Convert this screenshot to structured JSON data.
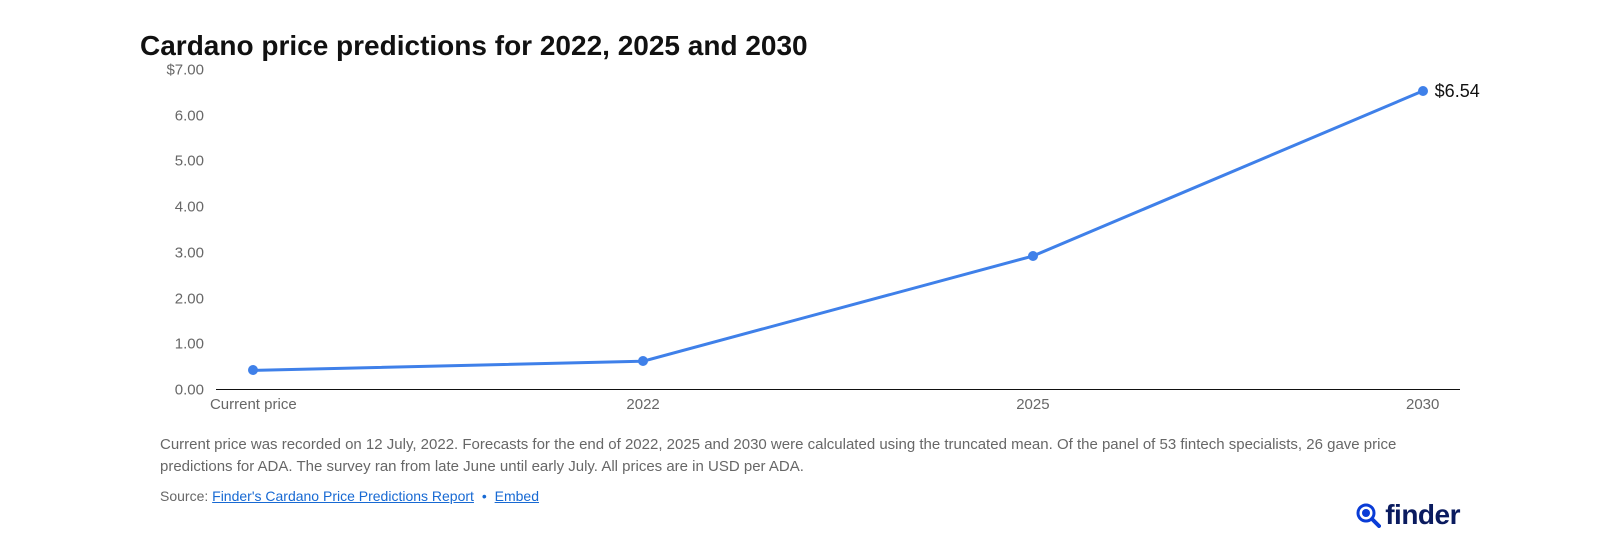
{
  "title": "Cardano price predictions for 2022, 2025 and 2030",
  "chart": {
    "type": "line",
    "background_color": "#ffffff",
    "line_color": "#3f80e9",
    "marker_color": "#3f80e9",
    "marker_radius": 5,
    "line_width": 3,
    "axis_color": "#111111",
    "tick_label_color": "#676767",
    "tick_fontsize": 15,
    "x_labels": [
      "Current price",
      "2022",
      "2025",
      "2030"
    ],
    "y_ticks": [
      "0.00",
      "1.00",
      "2.00",
      "3.00",
      "4.00",
      "5.00",
      "6.00",
      "$7.00"
    ],
    "y_tick_values": [
      0,
      1,
      2,
      3,
      4,
      5,
      6,
      7
    ],
    "ylim": [
      0,
      7
    ],
    "values": [
      0.43,
      0.63,
      2.93,
      6.54
    ],
    "value_label": "$6.54",
    "value_label_color": "#111111",
    "value_label_fontsize": 18
  },
  "caption": "Current price was recorded on 12 July, 2022. Forecasts for the end of 2022, 2025 and 2030 were calculated using the truncated mean. Of the panel of 53 fintech specialists, 26 gave price predictions for ADA. The survey ran from late June until early July. All prices are in USD per ADA.",
  "source": {
    "prefix": "Source: ",
    "link1": "Finder's Cardano Price Predictions Report",
    "sep": "•",
    "link2": "Embed"
  },
  "logo": {
    "text": "finder",
    "color": "#0a1b5f",
    "icon_color": "#0a3cd6"
  }
}
